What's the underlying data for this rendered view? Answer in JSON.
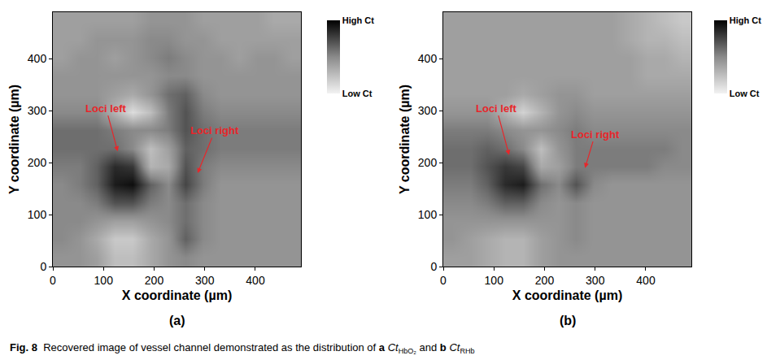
{
  "caption": {
    "label": "Fig. 8",
    "text": "Recovered image of vessel channel demonstrated as the distribution of",
    "joiner": "and",
    "items": [
      {
        "letter": "a",
        "symbol": "Ct",
        "subscript": "HbO₂"
      },
      {
        "letter": "b",
        "symbol": "Ct",
        "subscript": "RHb"
      }
    ]
  },
  "chart_data": [
    {
      "type": "heatmap",
      "panel_label": "(a)",
      "x_label": "X coordinate (µm)",
      "y_label": "Y coordinate (µm)",
      "xlim": [
        0,
        490
      ],
      "ylim": [
        0,
        490
      ],
      "xticks": [
        0,
        100,
        200,
        300,
        400
      ],
      "yticks": [
        0,
        100,
        200,
        300,
        400
      ],
      "grid": false,
      "x": [
        17.5,
        52.5,
        87.5,
        122.5,
        157.5,
        192.5,
        227.5,
        262.5,
        297.5,
        332.5,
        367.5,
        402.5,
        437.5,
        472.5
      ],
      "y": [
        17.5,
        52.5,
        87.5,
        122.5,
        157.5,
        192.5,
        227.5,
        262.5,
        297.5,
        332.5,
        367.5,
        402.5,
        437.5,
        472.5
      ],
      "z": [
        [
          0.45,
          0.45,
          0.4,
          0.25,
          0.25,
          0.35,
          0.45,
          0.5,
          0.45,
          0.45,
          0.45,
          0.45,
          0.45,
          0.45
        ],
        [
          0.5,
          0.45,
          0.35,
          0.2,
          0.2,
          0.35,
          0.45,
          0.65,
          0.5,
          0.45,
          0.45,
          0.45,
          0.45,
          0.45
        ],
        [
          0.5,
          0.5,
          0.45,
          0.4,
          0.4,
          0.45,
          0.5,
          0.6,
          0.5,
          0.45,
          0.45,
          0.45,
          0.45,
          0.45
        ],
        [
          0.5,
          0.5,
          0.55,
          0.7,
          0.7,
          0.55,
          0.5,
          0.6,
          0.5,
          0.45,
          0.45,
          0.45,
          0.45,
          0.45
        ],
        [
          0.5,
          0.55,
          0.65,
          0.9,
          0.95,
          0.65,
          0.5,
          0.75,
          0.55,
          0.45,
          0.45,
          0.45,
          0.45,
          0.45
        ],
        [
          0.55,
          0.55,
          0.65,
          0.85,
          0.8,
          0.3,
          0.35,
          0.7,
          0.55,
          0.5,
          0.5,
          0.5,
          0.5,
          0.5
        ],
        [
          0.6,
          0.6,
          0.6,
          0.6,
          0.5,
          0.25,
          0.4,
          0.65,
          0.6,
          0.55,
          0.55,
          0.55,
          0.55,
          0.55
        ],
        [
          0.6,
          0.6,
          0.6,
          0.55,
          0.5,
          0.5,
          0.55,
          0.7,
          0.6,
          0.55,
          0.55,
          0.55,
          0.55,
          0.55
        ],
        [
          0.5,
          0.5,
          0.5,
          0.3,
          0.1,
          0.25,
          0.55,
          0.7,
          0.55,
          0.5,
          0.5,
          0.5,
          0.5,
          0.5
        ],
        [
          0.45,
          0.45,
          0.45,
          0.4,
          0.35,
          0.45,
          0.6,
          0.65,
          0.5,
          0.45,
          0.45,
          0.45,
          0.45,
          0.45
        ],
        [
          0.45,
          0.45,
          0.45,
          0.45,
          0.45,
          0.45,
          0.5,
          0.5,
          0.45,
          0.45,
          0.45,
          0.45,
          0.45,
          0.45
        ],
        [
          0.4,
          0.45,
          0.45,
          0.4,
          0.45,
          0.5,
          0.55,
          0.5,
          0.45,
          0.45,
          0.4,
          0.45,
          0.45,
          0.4
        ],
        [
          0.4,
          0.4,
          0.45,
          0.45,
          0.45,
          0.5,
          0.5,
          0.45,
          0.45,
          0.4,
          0.4,
          0.4,
          0.4,
          0.4
        ],
        [
          0.4,
          0.4,
          0.4,
          0.4,
          0.4,
          0.45,
          0.45,
          0.45,
          0.4,
          0.4,
          0.4,
          0.4,
          0.35,
          0.35
        ]
      ],
      "colorbar": {
        "range": [
          0,
          1
        ],
        "ticks": [
          {
            "value": 1,
            "label": "High Ct"
          },
          {
            "value": 0,
            "label": "Low Ct"
          }
        ]
      },
      "annotations": [
        {
          "text": "Loci left",
          "text_at": [
            105,
            305
          ],
          "point": [
            128,
            222
          ],
          "color": "#e8262a"
        },
        {
          "text": "Loci right",
          "text_at": [
            320,
            262
          ],
          "point": [
            286,
            180
          ],
          "color": "#e8262a"
        }
      ]
    },
    {
      "type": "heatmap",
      "panel_label": "(b)",
      "x_label": "X coordinate (µm)",
      "y_label": "Y coordinate (µm)",
      "xlim": [
        0,
        490
      ],
      "ylim": [
        0,
        490
      ],
      "xticks": [
        0,
        100,
        200,
        300,
        400
      ],
      "yticks": [
        0,
        100,
        200,
        300,
        400
      ],
      "grid": false,
      "x": [
        17.5,
        52.5,
        87.5,
        122.5,
        157.5,
        192.5,
        227.5,
        262.5,
        297.5,
        332.5,
        367.5,
        402.5,
        437.5,
        472.5
      ],
      "y": [
        17.5,
        52.5,
        87.5,
        122.5,
        157.5,
        192.5,
        227.5,
        262.5,
        297.5,
        332.5,
        367.5,
        402.5,
        437.5,
        472.5
      ],
      "z": [
        [
          0.4,
          0.4,
          0.35,
          0.3,
          0.3,
          0.4,
          0.45,
          0.45,
          0.45,
          0.45,
          0.45,
          0.45,
          0.45,
          0.45
        ],
        [
          0.45,
          0.4,
          0.35,
          0.3,
          0.3,
          0.4,
          0.45,
          0.5,
          0.45,
          0.45,
          0.45,
          0.45,
          0.45,
          0.45
        ],
        [
          0.45,
          0.45,
          0.45,
          0.45,
          0.45,
          0.45,
          0.45,
          0.5,
          0.45,
          0.45,
          0.45,
          0.45,
          0.45,
          0.45
        ],
        [
          0.5,
          0.5,
          0.55,
          0.65,
          0.65,
          0.5,
          0.45,
          0.5,
          0.45,
          0.45,
          0.45,
          0.45,
          0.45,
          0.45
        ],
        [
          0.55,
          0.55,
          0.65,
          0.85,
          0.9,
          0.6,
          0.5,
          0.7,
          0.5,
          0.45,
          0.45,
          0.45,
          0.45,
          0.45
        ],
        [
          0.6,
          0.6,
          0.7,
          0.8,
          0.75,
          0.35,
          0.4,
          0.55,
          0.55,
          0.55,
          0.55,
          0.55,
          0.5,
          0.5
        ],
        [
          0.6,
          0.6,
          0.65,
          0.6,
          0.5,
          0.25,
          0.45,
          0.55,
          0.55,
          0.55,
          0.55,
          0.55,
          0.55,
          0.5
        ],
        [
          0.55,
          0.55,
          0.55,
          0.5,
          0.45,
          0.45,
          0.5,
          0.55,
          0.5,
          0.5,
          0.5,
          0.5,
          0.5,
          0.5
        ],
        [
          0.45,
          0.45,
          0.45,
          0.3,
          0.15,
          0.3,
          0.45,
          0.5,
          0.45,
          0.45,
          0.45,
          0.45,
          0.45,
          0.45
        ],
        [
          0.4,
          0.4,
          0.4,
          0.4,
          0.35,
          0.4,
          0.45,
          0.45,
          0.4,
          0.4,
          0.4,
          0.4,
          0.4,
          0.4
        ],
        [
          0.4,
          0.4,
          0.4,
          0.4,
          0.4,
          0.4,
          0.4,
          0.4,
          0.4,
          0.4,
          0.4,
          0.35,
          0.35,
          0.35
        ],
        [
          0.4,
          0.4,
          0.4,
          0.4,
          0.4,
          0.4,
          0.4,
          0.4,
          0.4,
          0.4,
          0.4,
          0.35,
          0.35,
          0.3
        ],
        [
          0.4,
          0.4,
          0.4,
          0.4,
          0.4,
          0.4,
          0.4,
          0.4,
          0.4,
          0.4,
          0.35,
          0.3,
          0.3,
          0.25
        ],
        [
          0.4,
          0.4,
          0.4,
          0.4,
          0.4,
          0.4,
          0.4,
          0.4,
          0.4,
          0.4,
          0.35,
          0.3,
          0.25,
          0.2
        ]
      ],
      "colorbar": {
        "range": [
          0,
          1
        ],
        "ticks": [
          {
            "value": 1,
            "label": "High Ct"
          },
          {
            "value": 0,
            "label": "Low Ct"
          }
        ]
      },
      "annotations": [
        {
          "text": "Loci left",
          "text_at": [
            105,
            305
          ],
          "point": [
            130,
            215
          ],
          "color": "#e8262a"
        },
        {
          "text": "Loci right",
          "text_at": [
            300,
            255
          ],
          "point": [
            280,
            190
          ],
          "color": "#e8262a"
        }
      ]
    }
  ]
}
